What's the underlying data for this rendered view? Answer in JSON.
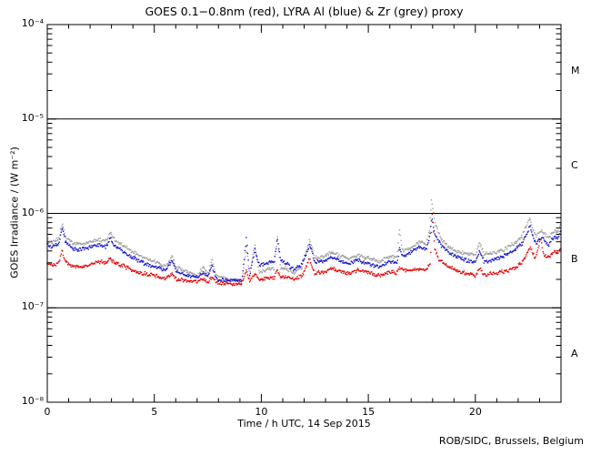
{
  "window": {
    "background": "#ffffff",
    "frame_color": "#000000"
  },
  "chart_data": {
    "type": "scatter",
    "title": "GOES 0.1−0.8nm (red), LYRA Al (blue) & Zr (grey) proxy",
    "xlabel": "Time / h UTC, 14 Sep 2015",
    "ylabel": "GOES Irradiance / (W m⁻²)",
    "credit": "ROB/SIDC, Brussels, Belgium",
    "grid": "decade-lines-only",
    "legend": "encoded-in-title",
    "x_axis": {
      "min": 0,
      "max": 24,
      "minor_step": 1,
      "major_ticks": [
        0,
        5,
        10,
        15,
        20
      ],
      "tick_labels": [
        "0",
        "5",
        "10",
        "15",
        "20"
      ]
    },
    "y_axis": {
      "scale": "log",
      "min": 1e-08,
      "max": 0.0001,
      "decade_exponents": [
        -4,
        -5,
        -6,
        -7,
        -8
      ],
      "decade_labels": [
        "10⁻⁴",
        "10⁻⁵",
        "10⁻⁶",
        "10⁻⁷",
        "10⁻⁸"
      ],
      "separator_lines_at": [
        1e-05,
        1e-06,
        1e-07
      ]
    },
    "flare_classes": [
      {
        "label": "M",
        "at": 3.16e-05
      },
      {
        "label": "C",
        "at": 3.16e-06
      },
      {
        "label": "B",
        "at": 3.16e-07
      },
      {
        "label": "A",
        "at": 3.16e-08
      }
    ],
    "series": [
      {
        "name": "LYRA Zr proxy",
        "color": "#9e9e9e",
        "points": [
          [
            0,
            5.2e-07
          ],
          [
            0.25,
            4.9e-07
          ],
          [
            0.55,
            5.4e-07
          ],
          [
            0.7,
            8e-07
          ],
          [
            0.85,
            5.6e-07
          ],
          [
            1.2,
            4.8e-07
          ],
          [
            1.6,
            4.7e-07
          ],
          [
            2.0,
            5e-07
          ],
          [
            2.4,
            5.3e-07
          ],
          [
            2.75,
            5.1e-07
          ],
          [
            2.95,
            6.3e-07
          ],
          [
            3.1,
            5.4e-07
          ],
          [
            3.5,
            4.6e-07
          ],
          [
            4.0,
            3.9e-07
          ],
          [
            4.5,
            3.4e-07
          ],
          [
            5.0,
            3.1e-07
          ],
          [
            5.5,
            2.75e-07
          ],
          [
            5.85,
            3.5e-07
          ],
          [
            6.0,
            2.7e-07
          ],
          [
            6.5,
            2.4e-07
          ],
          [
            7.0,
            2.2e-07
          ],
          [
            7.3,
            2.7e-07
          ],
          [
            7.5,
            2.25e-07
          ],
          [
            7.7,
            3.3e-07
          ],
          [
            7.9,
            2.15e-07
          ],
          [
            8.5,
            2e-07
          ],
          [
            9.1,
            2e-07
          ],
          [
            9.3,
            4.5e-07
          ],
          [
            9.45,
            2.2e-07
          ],
          [
            9.7,
            4.7e-07
          ],
          [
            9.9,
            2.4e-07
          ],
          [
            10.3,
            2.55e-07
          ],
          [
            10.6,
            2.6e-07
          ],
          [
            10.75,
            5.8e-07
          ],
          [
            10.9,
            2.7e-07
          ],
          [
            11.2,
            2.6e-07
          ],
          [
            11.5,
            2.35e-07
          ],
          [
            11.9,
            2.7e-07
          ],
          [
            12.25,
            5.2e-07
          ],
          [
            12.5,
            3.4e-07
          ],
          [
            12.9,
            3.4e-07
          ],
          [
            13.3,
            3.9e-07
          ],
          [
            13.7,
            3.5e-07
          ],
          [
            14.1,
            3.3e-07
          ],
          [
            14.5,
            3.6e-07
          ],
          [
            15.0,
            3.35e-07
          ],
          [
            15.5,
            3.1e-07
          ],
          [
            16.0,
            3.5e-07
          ],
          [
            16.35,
            3.4e-07
          ],
          [
            16.45,
            7e-07
          ],
          [
            16.6,
            4e-07
          ],
          [
            17.0,
            4.4e-07
          ],
          [
            17.4,
            5e-07
          ],
          [
            17.7,
            4.7e-07
          ],
          [
            17.85,
            6.5e-07
          ],
          [
            17.95,
            1.43e-06
          ],
          [
            18.1,
            8e-07
          ],
          [
            18.4,
            5.3e-07
          ],
          [
            18.8,
            4.3e-07
          ],
          [
            19.2,
            3.9e-07
          ],
          [
            19.7,
            3.65e-07
          ],
          [
            20.0,
            3.6e-07
          ],
          [
            20.2,
            4.9e-07
          ],
          [
            20.4,
            3.7e-07
          ],
          [
            20.8,
            3.8e-07
          ],
          [
            21.3,
            4.1e-07
          ],
          [
            21.8,
            4.8e-07
          ],
          [
            22.2,
            5.8e-07
          ],
          [
            22.55,
            9e-07
          ],
          [
            22.8,
            5.7e-07
          ],
          [
            23.1,
            6.6e-07
          ],
          [
            23.4,
            5.5e-07
          ],
          [
            23.7,
            6.6e-07
          ],
          [
            23.85,
            6.3e-07
          ],
          [
            24,
            7.6e-07
          ]
        ]
      },
      {
        "name": "LYRA Al proxy",
        "color": "#1414cc",
        "points": [
          [
            0,
            4.6e-07
          ],
          [
            0.25,
            4.4e-07
          ],
          [
            0.55,
            4.8e-07
          ],
          [
            0.7,
            7e-07
          ],
          [
            0.85,
            5e-07
          ],
          [
            1.2,
            4.2e-07
          ],
          [
            1.6,
            4.1e-07
          ],
          [
            2.0,
            4.4e-07
          ],
          [
            2.4,
            4.6e-07
          ],
          [
            2.75,
            4.4e-07
          ],
          [
            2.95,
            5.5e-07
          ],
          [
            3.1,
            4.6e-07
          ],
          [
            3.5,
            4e-07
          ],
          [
            4.0,
            3.4e-07
          ],
          [
            4.5,
            3e-07
          ],
          [
            5.0,
            2.75e-07
          ],
          [
            5.5,
            2.5e-07
          ],
          [
            5.85,
            3.2e-07
          ],
          [
            6.0,
            2.45e-07
          ],
          [
            6.5,
            2.2e-07
          ],
          [
            7.0,
            2.1e-07
          ],
          [
            7.3,
            2.4e-07
          ],
          [
            7.5,
            2.1e-07
          ],
          [
            7.7,
            2.8e-07
          ],
          [
            7.9,
            2e-07
          ],
          [
            8.5,
            1.95e-07
          ],
          [
            9.1,
            1.95e-07
          ],
          [
            9.3,
            5.5e-07
          ],
          [
            9.45,
            2.2e-07
          ],
          [
            9.7,
            4.2e-07
          ],
          [
            9.9,
            2.8e-07
          ],
          [
            10.3,
            3e-07
          ],
          [
            10.6,
            3.05e-07
          ],
          [
            10.75,
            5.5e-07
          ],
          [
            10.9,
            3.1e-07
          ],
          [
            11.2,
            2.95e-07
          ],
          [
            11.5,
            2.55e-07
          ],
          [
            11.9,
            2.9e-07
          ],
          [
            12.25,
            4.6e-07
          ],
          [
            12.5,
            3.05e-07
          ],
          [
            12.9,
            3.1e-07
          ],
          [
            13.3,
            3.5e-07
          ],
          [
            13.7,
            3.15e-07
          ],
          [
            14.1,
            2.95e-07
          ],
          [
            14.5,
            3.2e-07
          ],
          [
            15.0,
            2.95e-07
          ],
          [
            15.5,
            2.7e-07
          ],
          [
            16.0,
            3.1e-07
          ],
          [
            16.35,
            3e-07
          ],
          [
            16.45,
            4.3e-07
          ],
          [
            16.6,
            3.5e-07
          ],
          [
            17.0,
            3.9e-07
          ],
          [
            17.4,
            4.4e-07
          ],
          [
            17.7,
            4.1e-07
          ],
          [
            17.85,
            5.5e-07
          ],
          [
            17.97,
            8.8e-07
          ],
          [
            18.1,
            6e-07
          ],
          [
            18.4,
            4.6e-07
          ],
          [
            18.8,
            3.8e-07
          ],
          [
            19.2,
            3.4e-07
          ],
          [
            19.7,
            3.1e-07
          ],
          [
            20.0,
            3e-07
          ],
          [
            20.2,
            4e-07
          ],
          [
            20.4,
            3.1e-07
          ],
          [
            20.8,
            3.2e-07
          ],
          [
            21.3,
            3.5e-07
          ],
          [
            21.8,
            4e-07
          ],
          [
            22.2,
            4.8e-07
          ],
          [
            22.55,
            7.3e-07
          ],
          [
            22.8,
            4.8e-07
          ],
          [
            23.1,
            5.6e-07
          ],
          [
            23.4,
            4.6e-07
          ],
          [
            23.7,
            5.7e-07
          ],
          [
            23.85,
            5.4e-07
          ],
          [
            24,
            6.5e-07
          ]
        ]
      },
      {
        "name": "GOES 0.1-0.8nm",
        "color": "#e60000",
        "points": [
          [
            0,
            3e-07
          ],
          [
            0.25,
            2.85e-07
          ],
          [
            0.55,
            3e-07
          ],
          [
            0.7,
            4.1e-07
          ],
          [
            0.85,
            3.1e-07
          ],
          [
            1.2,
            2.75e-07
          ],
          [
            1.6,
            2.7e-07
          ],
          [
            2.0,
            2.9e-07
          ],
          [
            2.4,
            3.1e-07
          ],
          [
            2.75,
            3e-07
          ],
          [
            2.95,
            3.4e-07
          ],
          [
            3.1,
            3e-07
          ],
          [
            3.5,
            2.8e-07
          ],
          [
            4.0,
            2.5e-07
          ],
          [
            4.5,
            2.3e-07
          ],
          [
            5.0,
            2.2e-07
          ],
          [
            5.5,
            2.05e-07
          ],
          [
            5.85,
            2.3e-07
          ],
          [
            6.0,
            2e-07
          ],
          [
            6.5,
            1.95e-07
          ],
          [
            7.0,
            1.9e-07
          ],
          [
            7.3,
            2e-07
          ],
          [
            7.5,
            1.9e-07
          ],
          [
            7.7,
            2.1e-07
          ],
          [
            7.9,
            1.85e-07
          ],
          [
            8.5,
            1.8e-07
          ],
          [
            9.1,
            1.8e-07
          ],
          [
            9.3,
            2.5e-07
          ],
          [
            9.45,
            1.9e-07
          ],
          [
            9.7,
            2.3e-07
          ],
          [
            9.9,
            2e-07
          ],
          [
            10.3,
            2.1e-07
          ],
          [
            10.6,
            2.1e-07
          ],
          [
            10.75,
            2.5e-07
          ],
          [
            10.9,
            2.15e-07
          ],
          [
            11.2,
            2.1e-07
          ],
          [
            11.5,
            2e-07
          ],
          [
            11.9,
            2.15e-07
          ],
          [
            12.25,
            3.3e-07
          ],
          [
            12.5,
            2.3e-07
          ],
          [
            12.9,
            2.4e-07
          ],
          [
            13.3,
            2.6e-07
          ],
          [
            13.7,
            2.45e-07
          ],
          [
            14.1,
            2.3e-07
          ],
          [
            14.5,
            2.5e-07
          ],
          [
            15.0,
            2.4e-07
          ],
          [
            15.5,
            2.2e-07
          ],
          [
            16.0,
            2.4e-07
          ],
          [
            16.35,
            2.35e-07
          ],
          [
            16.45,
            2.7e-07
          ],
          [
            16.6,
            2.5e-07
          ],
          [
            17.0,
            2.5e-07
          ],
          [
            17.4,
            2.6e-07
          ],
          [
            17.7,
            2.5e-07
          ],
          [
            17.9,
            3e-07
          ],
          [
            17.98,
            1e-06
          ],
          [
            18.1,
            4.2e-07
          ],
          [
            18.3,
            3.2e-07
          ],
          [
            18.8,
            2.7e-07
          ],
          [
            19.2,
            2.45e-07
          ],
          [
            19.7,
            2.3e-07
          ],
          [
            20.0,
            2.2e-07
          ],
          [
            20.2,
            2.6e-07
          ],
          [
            20.4,
            2.25e-07
          ],
          [
            20.8,
            2.3e-07
          ],
          [
            21.3,
            2.4e-07
          ],
          [
            21.8,
            2.6e-07
          ],
          [
            22.2,
            3e-07
          ],
          [
            22.55,
            4.4e-07
          ],
          [
            22.8,
            3.3e-07
          ],
          [
            23.05,
            5.4e-07
          ],
          [
            23.2,
            3.6e-07
          ],
          [
            23.4,
            3.4e-07
          ],
          [
            23.7,
            4e-07
          ],
          [
            23.85,
            3.8e-07
          ],
          [
            24,
            4.3e-07
          ]
        ]
      }
    ]
  }
}
